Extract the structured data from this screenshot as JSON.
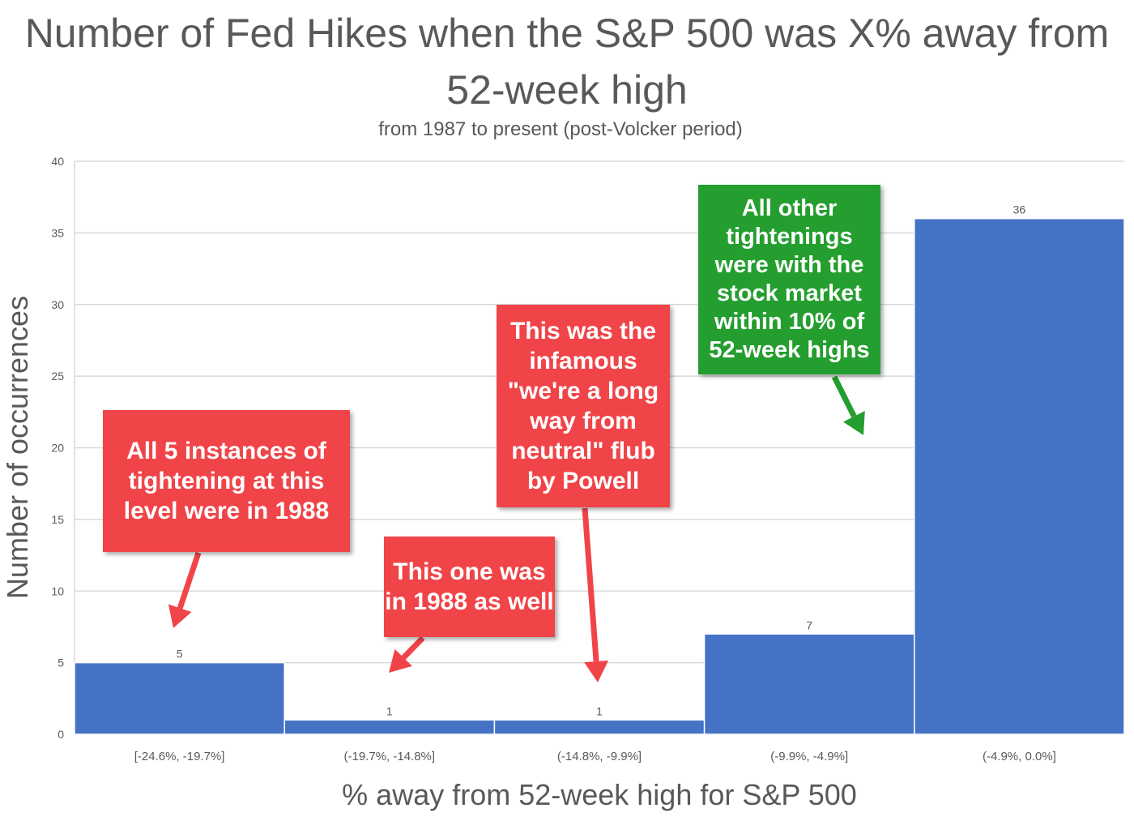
{
  "chart_data": {
    "type": "bar",
    "title": "Number of Fed Hikes when the S&P 500 was X% away from 52-week high",
    "subtitle": "from 1987 to present (post-Volcker period)",
    "xlabel": "% away from 52-week high for S&P 500",
    "ylabel": "Number of occurrences",
    "categories": [
      "[-24.6%, -19.7%]",
      "(-19.7%, -14.8%]",
      "(-14.8%, -9.9%]",
      "(-9.9%, -4.9%]",
      "(-4.9%, 0.0%]"
    ],
    "values": [
      5,
      1,
      1,
      7,
      36
    ],
    "ylim": [
      0,
      40
    ],
    "yticks": [
      0,
      5,
      10,
      15,
      20,
      25,
      30,
      35,
      40
    ],
    "grid": true,
    "bar_color": "#4472C4",
    "annotations": [
      {
        "text": "All 5 instances of tightening at this level were in 1988",
        "target_category": 0,
        "color": "#F04448"
      },
      {
        "text": "This one was in 1988 as well",
        "target_category": 1,
        "color": "#F04448"
      },
      {
        "text": "This was the infamous \"we're a long way from neutral\" flub by Powell",
        "target_category": 2,
        "color": "#F04448"
      },
      {
        "text": "All other tightenings were with the stock market within 10% of 52-week highs",
        "target_category": 3,
        "color": "#249E2F"
      }
    ]
  }
}
